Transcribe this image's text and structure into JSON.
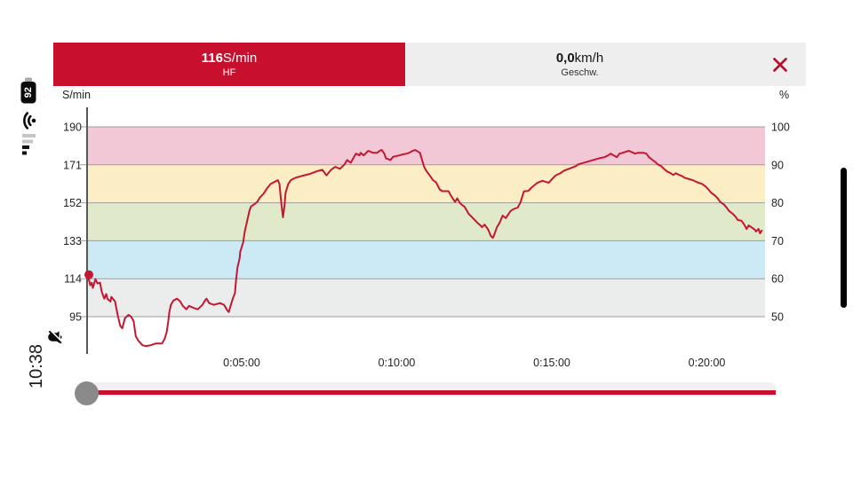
{
  "status_bar": {
    "battery_percent": "92",
    "time": "10:38"
  },
  "tabs": {
    "hf": {
      "value": "116",
      "unit": "S/min",
      "label": "HF",
      "color": "#c8102e",
      "active": true
    },
    "speed": {
      "value": "0,0",
      "unit": "km/h",
      "label": "Geschw.",
      "color": "#eeeeee",
      "active": false
    },
    "close_color": "#b5122f"
  },
  "chart_data": {
    "type": "line",
    "title": "",
    "y_left": {
      "label": "S/min",
      "ticks": [
        190,
        171,
        152,
        133,
        114,
        95
      ],
      "min": 75,
      "max": 200
    },
    "y_right": {
      "label": "%",
      "ticks": [
        100,
        90,
        80,
        70,
        60,
        50
      ]
    },
    "x_ticks": [
      {
        "t": 300,
        "label": "0:05:00"
      },
      {
        "t": 600,
        "label": "0:10:00"
      },
      {
        "t": 900,
        "label": "0:15:00"
      },
      {
        "t": 1200,
        "label": "0:20:00"
      }
    ],
    "x_range_s": [
      0,
      1312
    ],
    "grid": true,
    "legend": "none",
    "zones": [
      {
        "from": 171,
        "to": 190,
        "color": "#f3c8d6"
      },
      {
        "from": 152,
        "to": 171,
        "color": "#fbeec4"
      },
      {
        "from": 133,
        "to": 152,
        "color": "#e0e9c9"
      },
      {
        "from": 114,
        "to": 133,
        "color": "#cce9f6"
      },
      {
        "from": 95,
        "to": 114,
        "color": "#ebecec"
      }
    ],
    "series": [
      {
        "name": "HF",
        "unit": "S/min",
        "color": "#c41733",
        "points": [
          [
            0,
            116
          ],
          [
            5,
            113
          ],
          [
            7,
            110.7
          ],
          [
            10,
            112
          ],
          [
            12,
            109.4
          ],
          [
            17,
            113.8
          ],
          [
            21,
            111.6
          ],
          [
            26,
            112
          ],
          [
            29,
            107.6
          ],
          [
            34,
            104
          ],
          [
            38,
            106.3
          ],
          [
            40,
            104
          ],
          [
            46,
            102.6
          ],
          [
            48,
            104.9
          ],
          [
            55,
            102.6
          ],
          [
            60,
            95.9
          ],
          [
            65,
            90.5
          ],
          [
            69,
            89.2
          ],
          [
            74,
            94.2
          ],
          [
            81,
            95.9
          ],
          [
            86,
            95
          ],
          [
            91,
            92.8
          ],
          [
            95,
            85.2
          ],
          [
            100,
            83
          ],
          [
            108,
            80.7
          ],
          [
            115,
            80.3
          ],
          [
            124,
            80.7
          ],
          [
            134,
            81.6
          ],
          [
            146,
            81.6
          ],
          [
            151,
            83.9
          ],
          [
            155,
            87.5
          ],
          [
            158,
            92.8
          ],
          [
            160,
            97.3
          ],
          [
            163,
            100.9
          ],
          [
            168,
            103.1
          ],
          [
            175,
            104
          ],
          [
            181,
            102.6
          ],
          [
            186,
            100.4
          ],
          [
            193,
            98.7
          ],
          [
            198,
            100.4
          ],
          [
            206,
            99.5
          ],
          [
            215,
            98.7
          ],
          [
            224,
            100.9
          ],
          [
            229,
            103.1
          ],
          [
            232,
            104
          ],
          [
            237,
            101.8
          ],
          [
            246,
            100.9
          ],
          [
            258,
            101.8
          ],
          [
            266,
            100.9
          ],
          [
            272,
            98.2
          ],
          [
            275,
            97.3
          ],
          [
            279,
            100.9
          ],
          [
            284,
            104.9
          ],
          [
            287,
            106.7
          ],
          [
            289,
            113
          ],
          [
            292,
            119.7
          ],
          [
            296,
            124.2
          ],
          [
            297,
            127.3
          ],
          [
            303,
            132.3
          ],
          [
            306,
            137.7
          ],
          [
            311,
            143.4
          ],
          [
            315,
            148
          ],
          [
            318,
            150.2
          ],
          [
            323,
            151
          ],
          [
            330,
            152.4
          ],
          [
            335,
            154.6
          ],
          [
            342,
            156.4
          ],
          [
            349,
            159.2
          ],
          [
            356,
            161.4
          ],
          [
            363,
            162.4
          ],
          [
            370,
            163.3
          ],
          [
            373,
            161.4
          ],
          [
            377,
            151
          ],
          [
            380,
            144.7
          ],
          [
            383,
            151
          ],
          [
            385,
            157
          ],
          [
            390,
            161.4
          ],
          [
            395,
            163.3
          ],
          [
            404,
            164.5
          ],
          [
            416,
            165.4
          ],
          [
            430,
            166.3
          ],
          [
            445,
            167.7
          ],
          [
            456,
            168.5
          ],
          [
            464,
            165.7
          ],
          [
            473,
            168.5
          ],
          [
            481,
            170
          ],
          [
            490,
            169
          ],
          [
            499,
            171.2
          ],
          [
            504,
            173.4
          ],
          [
            511,
            172
          ],
          [
            516,
            174.3
          ],
          [
            521,
            176.6
          ],
          [
            528,
            175.7
          ],
          [
            530,
            177
          ],
          [
            536,
            175.7
          ],
          [
            545,
            178
          ],
          [
            554,
            177
          ],
          [
            562,
            177
          ],
          [
            567,
            178
          ],
          [
            571,
            178.4
          ],
          [
            576,
            176.6
          ],
          [
            579,
            174.3
          ],
          [
            588,
            173.4
          ],
          [
            593,
            175
          ],
          [
            605,
            175.7
          ],
          [
            610,
            176.1
          ],
          [
            619,
            176.6
          ],
          [
            624,
            177
          ],
          [
            631,
            178
          ],
          [
            636,
            178.4
          ],
          [
            645,
            177
          ],
          [
            648,
            174.3
          ],
          [
            653,
            170
          ],
          [
            658,
            167.7
          ],
          [
            662,
            166.3
          ],
          [
            667,
            164.5
          ],
          [
            670,
            163.3
          ],
          [
            676,
            162.3
          ],
          [
            683,
            158.7
          ],
          [
            688,
            157.8
          ],
          [
            700,
            157.8
          ],
          [
            705,
            155.5
          ],
          [
            713,
            152.4
          ],
          [
            717,
            154.2
          ],
          [
            722,
            151.9
          ],
          [
            726,
            151
          ],
          [
            731,
            150.1
          ],
          [
            739,
            146.5
          ],
          [
            744,
            145.2
          ],
          [
            751,
            143.4
          ],
          [
            756,
            142
          ],
          [
            762,
            140.7
          ],
          [
            765,
            139.8
          ],
          [
            770,
            141.1
          ],
          [
            777,
            138.5
          ],
          [
            782,
            135.4
          ],
          [
            786,
            134.4
          ],
          [
            789,
            136.2
          ],
          [
            794,
            139.8
          ],
          [
            799,
            142
          ],
          [
            805,
            145.6
          ],
          [
            811,
            144.3
          ],
          [
            820,
            147.8
          ],
          [
            825,
            148.7
          ],
          [
            834,
            149.6
          ],
          [
            839,
            151.9
          ],
          [
            846,
            157.7
          ],
          [
            855,
            158
          ],
          [
            860,
            159.4
          ],
          [
            872,
            162
          ],
          [
            882,
            163
          ],
          [
            894,
            162
          ],
          [
            903,
            164.5
          ],
          [
            908,
            165.8
          ],
          [
            916,
            166.7
          ],
          [
            923,
            168
          ],
          [
            933,
            169
          ],
          [
            946,
            170.3
          ],
          [
            951,
            171.2
          ],
          [
            963,
            172.1
          ],
          [
            968,
            172.5
          ],
          [
            980,
            173.4
          ],
          [
            992,
            174.3
          ],
          [
            1002,
            174.8
          ],
          [
            1009,
            175.7
          ],
          [
            1014,
            176.6
          ],
          [
            1026,
            174.8
          ],
          [
            1031,
            176.6
          ],
          [
            1037,
            177
          ],
          [
            1049,
            178
          ],
          [
            1061,
            176.6
          ],
          [
            1066,
            177
          ],
          [
            1078,
            177
          ],
          [
            1083,
            176.6
          ],
          [
            1088,
            174.8
          ],
          [
            1095,
            173.4
          ],
          [
            1100,
            172.5
          ],
          [
            1105,
            171.2
          ],
          [
            1112,
            170.3
          ],
          [
            1117,
            169
          ],
          [
            1123,
            167.7
          ],
          [
            1130,
            166.8
          ],
          [
            1135,
            165.9
          ],
          [
            1140,
            166.8
          ],
          [
            1147,
            165.9
          ],
          [
            1152,
            165.4
          ],
          [
            1157,
            164.5
          ],
          [
            1169,
            163.6
          ],
          [
            1174,
            163.2
          ],
          [
            1181,
            162.3
          ],
          [
            1191,
            161.4
          ],
          [
            1198,
            160.1
          ],
          [
            1203,
            158.7
          ],
          [
            1209,
            156.9
          ],
          [
            1216,
            155.6
          ],
          [
            1221,
            154.2
          ],
          [
            1226,
            152.4
          ],
          [
            1233,
            151.1
          ],
          [
            1238,
            149.7
          ],
          [
            1243,
            147.9
          ],
          [
            1250,
            146.5
          ],
          [
            1255,
            145.2
          ],
          [
            1260,
            143.4
          ],
          [
            1267,
            143
          ],
          [
            1272,
            141.2
          ],
          [
            1277,
            138.9
          ],
          [
            1281,
            140.7
          ],
          [
            1286,
            139.8
          ],
          [
            1293,
            138.5
          ],
          [
            1295,
            137.6
          ],
          [
            1300,
            138.9
          ],
          [
            1303,
            136.7
          ],
          [
            1307,
            138.4
          ]
        ]
      }
    ]
  },
  "slider": {
    "handle_color": "#8a8a8a",
    "track_color": "#c8102e"
  },
  "scroll_pill_color": "#000000"
}
